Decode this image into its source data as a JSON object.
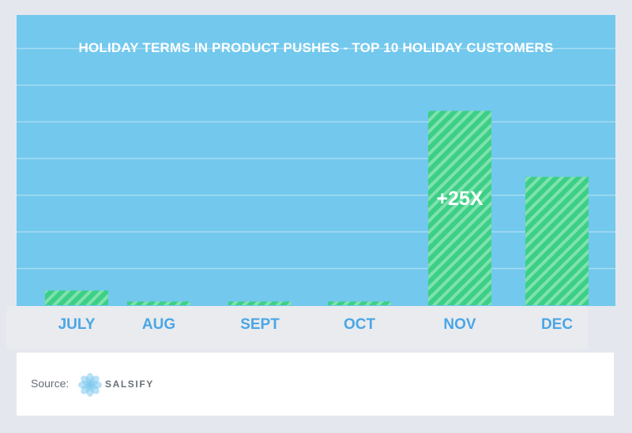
{
  "colors": {
    "background": "#72c8ed",
    "bar_fill": "#3ccf86",
    "bar_stripe": "#7fe2ae",
    "gridline": "#a8dcf3",
    "axis_label": "#4aa6e6"
  },
  "chart_data": {
    "type": "bar",
    "title": "HOLIDAY TERMS IN PRODUCT PUSHES - TOP 10 HOLIDAY CUSTOMERS",
    "xlabel": "",
    "ylabel": "",
    "categories": [
      "JULY",
      "AUG",
      "SEPT",
      "OCT",
      "NOV",
      "DEC"
    ],
    "values": [
      0.4,
      0.1,
      0.1,
      0.1,
      5.3,
      3.5
    ],
    "ylim": [
      0,
      7
    ],
    "grid": true,
    "bar_style": "diagonal-stripes",
    "annotations": [
      {
        "category": "NOV",
        "text": "+25X"
      }
    ]
  },
  "footer": {
    "source_label": "Source:",
    "logo_name": "salsify-flower-icon",
    "logo_text": "SALSIFY"
  }
}
